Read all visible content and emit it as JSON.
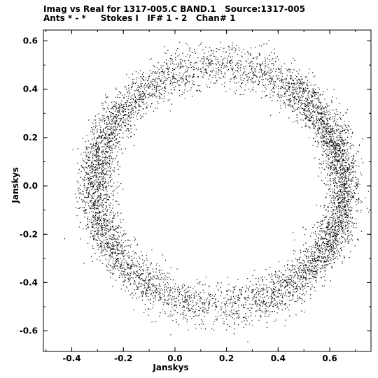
{
  "header": {
    "line1": "Imag vs Real for 1317-005.C BAND.1   Source:1317-005",
    "line2": "Ants * - *     Stokes I   IF# 1 - 2   Chan# 1"
  },
  "chart_data": {
    "type": "scatter",
    "title": "Imag vs Real for 1317-005.C BAND.1   Source:1317-005",
    "subtitle": "Ants * - *     Stokes I   IF# 1 - 2   Chan# 1",
    "xlabel": "Janskys",
    "ylabel": "Janskys",
    "xlim": [
      -0.51,
      0.76
    ],
    "ylim": [
      -0.685,
      0.645
    ],
    "xticks": [
      -0.4,
      -0.2,
      0.0,
      0.2,
      0.4,
      0.6
    ],
    "yticks": [
      -0.6,
      -0.4,
      -0.2,
      0.0,
      0.2,
      0.4,
      0.6
    ],
    "xtick_labels": [
      "-0.4",
      "-0.2",
      "0.0",
      "0.2",
      "0.4",
      "0.6"
    ],
    "ytick_labels": [
      "-0.6",
      "-0.4",
      "-0.2",
      "0.0",
      "0.2",
      "0.4",
      "0.6"
    ],
    "grid": false,
    "point_color": "#000000",
    "distribution": {
      "shape": "ring",
      "center": [
        0.17,
        0.0
      ],
      "ring_radius_x": 0.48,
      "ring_radius_y": 0.5,
      "inner_hole_radius_x": 0.31,
      "inner_hole_radius_y": 0.3,
      "approx_points": 9000,
      "densest_regions": [
        "right edge x~0.62-0.68",
        "left edge x~-0.35"
      ]
    }
  }
}
